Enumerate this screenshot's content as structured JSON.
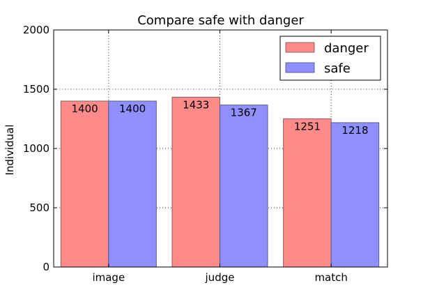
{
  "chart_data": {
    "type": "bar",
    "title": "Compare safe with danger",
    "xlabel": "",
    "ylabel": "Individual",
    "categories": [
      "image",
      "judge",
      "match"
    ],
    "series": [
      {
        "name": "danger",
        "values": [
          1400,
          1433,
          1251
        ],
        "color": "#ff8a8a"
      },
      {
        "name": "safe",
        "values": [
          1400,
          1367,
          1218
        ],
        "color": "#8f8fff"
      }
    ],
    "ylim": [
      0,
      2000
    ],
    "yticks": [
      0,
      500,
      1000,
      1500,
      2000
    ],
    "grid": true,
    "legend_position": "top-right"
  }
}
